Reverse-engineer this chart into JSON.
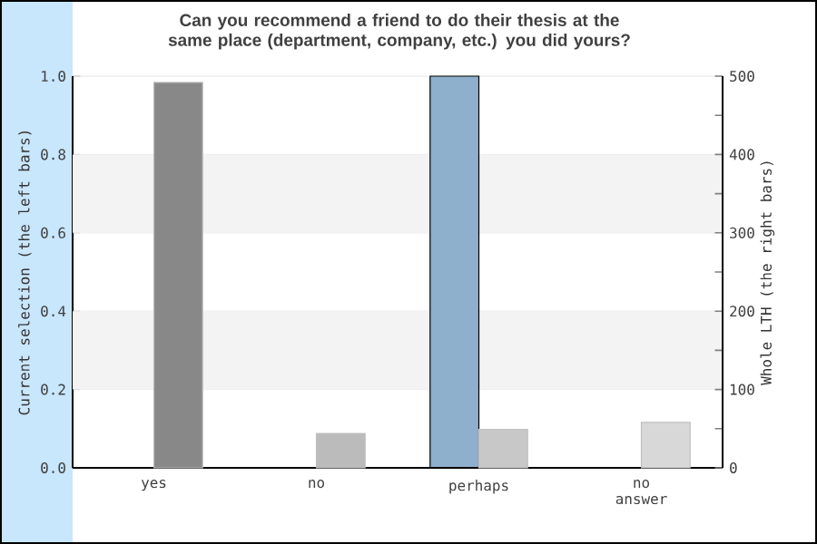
{
  "chart_data": {
    "type": "bar",
    "title": "Can you recommend a friend to do their thesis at the same place (department, company, etc.) you did yours?",
    "categories": [
      "yes",
      "no",
      "perhaps",
      "no answer"
    ],
    "series": [
      {
        "color": "#8fb0cc",
        "values": [
          0,
          0,
          1.0,
          0
        ]
      },
      {
        "axis": "y2",
        "colors": [
          "#888888",
          "#bbbbbb",
          "#c8c8c8",
          "#d8d8d8"
        ],
        "values": [
          492,
          44,
          49,
          58
        ]
      }
    ],
    "ylabel": "Current selection (the left bars)",
    "y2label": "Whole LTH (the right bars)",
    "ylim": [
      0,
      1
    ],
    "yticks": [
      {
        "value": 0,
        "label": "0.0"
      },
      {
        "value": 0.2,
        "label": "0.2"
      },
      {
        "value": 0.4,
        "label": "0.4"
      },
      {
        "value": 0.6,
        "label": "0.6"
      },
      {
        "value": 0.8,
        "label": "0.8"
      },
      {
        "value": 1,
        "label": "1.0"
      }
    ],
    "y2lim": [
      0,
      500
    ],
    "y2ticks": [
      0,
      {
        "value": 50,
        "label": null
      },
      100,
      {
        "value": 150,
        "label": null
      },
      200,
      {
        "value": 250,
        "label": null
      },
      300,
      {
        "value": 350,
        "label": null
      },
      400,
      {
        "value": 450,
        "label": null
      },
      500
    ],
    "bands": [
      {
        "axis": "y",
        "from": 0.2,
        "to": 0.4,
        "color": "#f3f3f3"
      },
      {
        "axis": "y",
        "from": 0.6,
        "to": 0.8,
        "color": "#f3f3f3"
      }
    ],
    "grid": "y"
  }
}
